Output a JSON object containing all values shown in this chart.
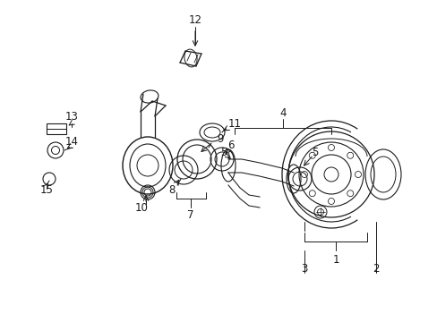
{
  "bg_color": "#ffffff",
  "line_color": "#1a1a1a",
  "fig_width": 4.89,
  "fig_height": 3.6,
  "dpi": 100,
  "label_fontsize": 8.5,
  "line_width": 0.75
}
